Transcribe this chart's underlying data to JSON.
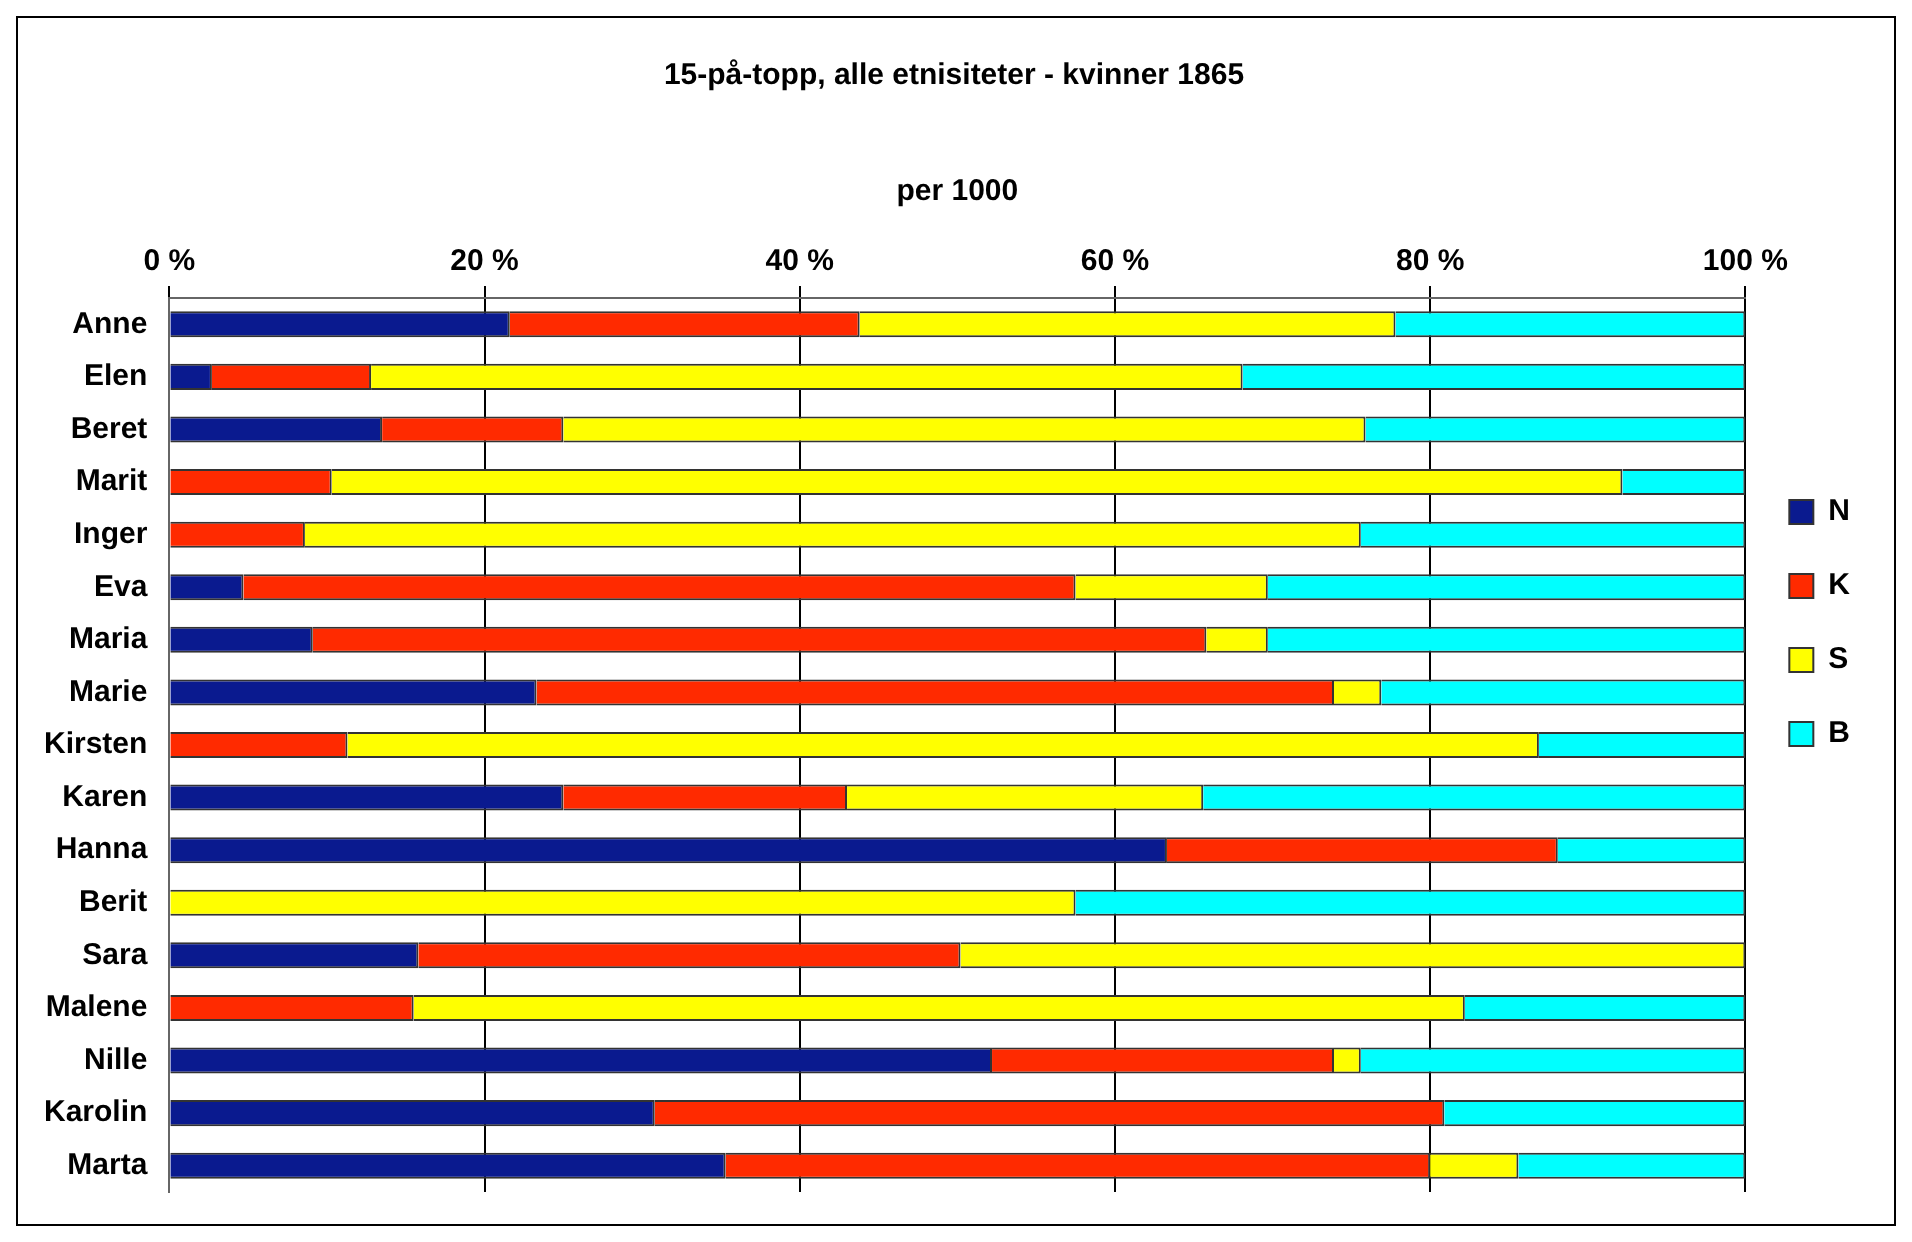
{
  "chart_data": {
    "type": "bar",
    "title": "15-på-topp, alle etnisiteter - kvinner 1865",
    "xlabel": "per 1000",
    "orientation": "horizontal",
    "stacked": true,
    "grid": "x",
    "legend": "right",
    "categories": [
      "Anne",
      "Elen",
      "Beret",
      "Marit",
      "Inger",
      "Eva",
      "Maria",
      "Marie",
      "Kirsten",
      "Karen",
      "Hanna",
      "Berit",
      "Sara",
      "Malene",
      "Nille",
      "Karolin",
      "Marta"
    ],
    "xlim": [
      0,
      100
    ],
    "xticks": [
      {
        "value": 0,
        "label": "0 %"
      },
      {
        "value": 20,
        "label": "20 %"
      },
      {
        "value": 40,
        "label": "40 %"
      },
      {
        "value": 60,
        "label": "60 %"
      },
      {
        "value": 80,
        "label": "80 %"
      },
      {
        "value": 100,
        "label": "100 %"
      }
    ],
    "series": [
      {
        "name": "N",
        "color": "#0a1a8f",
        "values": [
          21.6,
          2.7,
          13.5,
          0,
          0,
          4.7,
          9.1,
          23.3,
          0,
          25.0,
          63.3,
          0,
          15.8,
          0,
          52.2,
          30.8,
          35.3
        ]
      },
      {
        "name": "K",
        "color": "#ff2a00",
        "values": [
          22.2,
          10.1,
          11.5,
          10.3,
          8.6,
          52.8,
          56.7,
          50.6,
          11.3,
          18.0,
          24.8,
          0,
          34.4,
          15.5,
          21.7,
          50.1,
          44.7
        ]
      },
      {
        "name": "S",
        "color": "#ffff00",
        "values": [
          34.0,
          55.3,
          50.9,
          81.9,
          67.0,
          12.2,
          3.9,
          3.0,
          75.6,
          22.6,
          0,
          57.5,
          49.8,
          66.7,
          1.7,
          0,
          5.6
        ]
      },
      {
        "name": "B",
        "color": "#00ffff",
        "values": [
          22.2,
          31.9,
          24.1,
          7.8,
          24.4,
          30.3,
          30.3,
          23.1,
          13.1,
          34.4,
          11.9,
          42.5,
          0,
          17.8,
          24.4,
          19.1,
          14.4
        ]
      }
    ]
  }
}
